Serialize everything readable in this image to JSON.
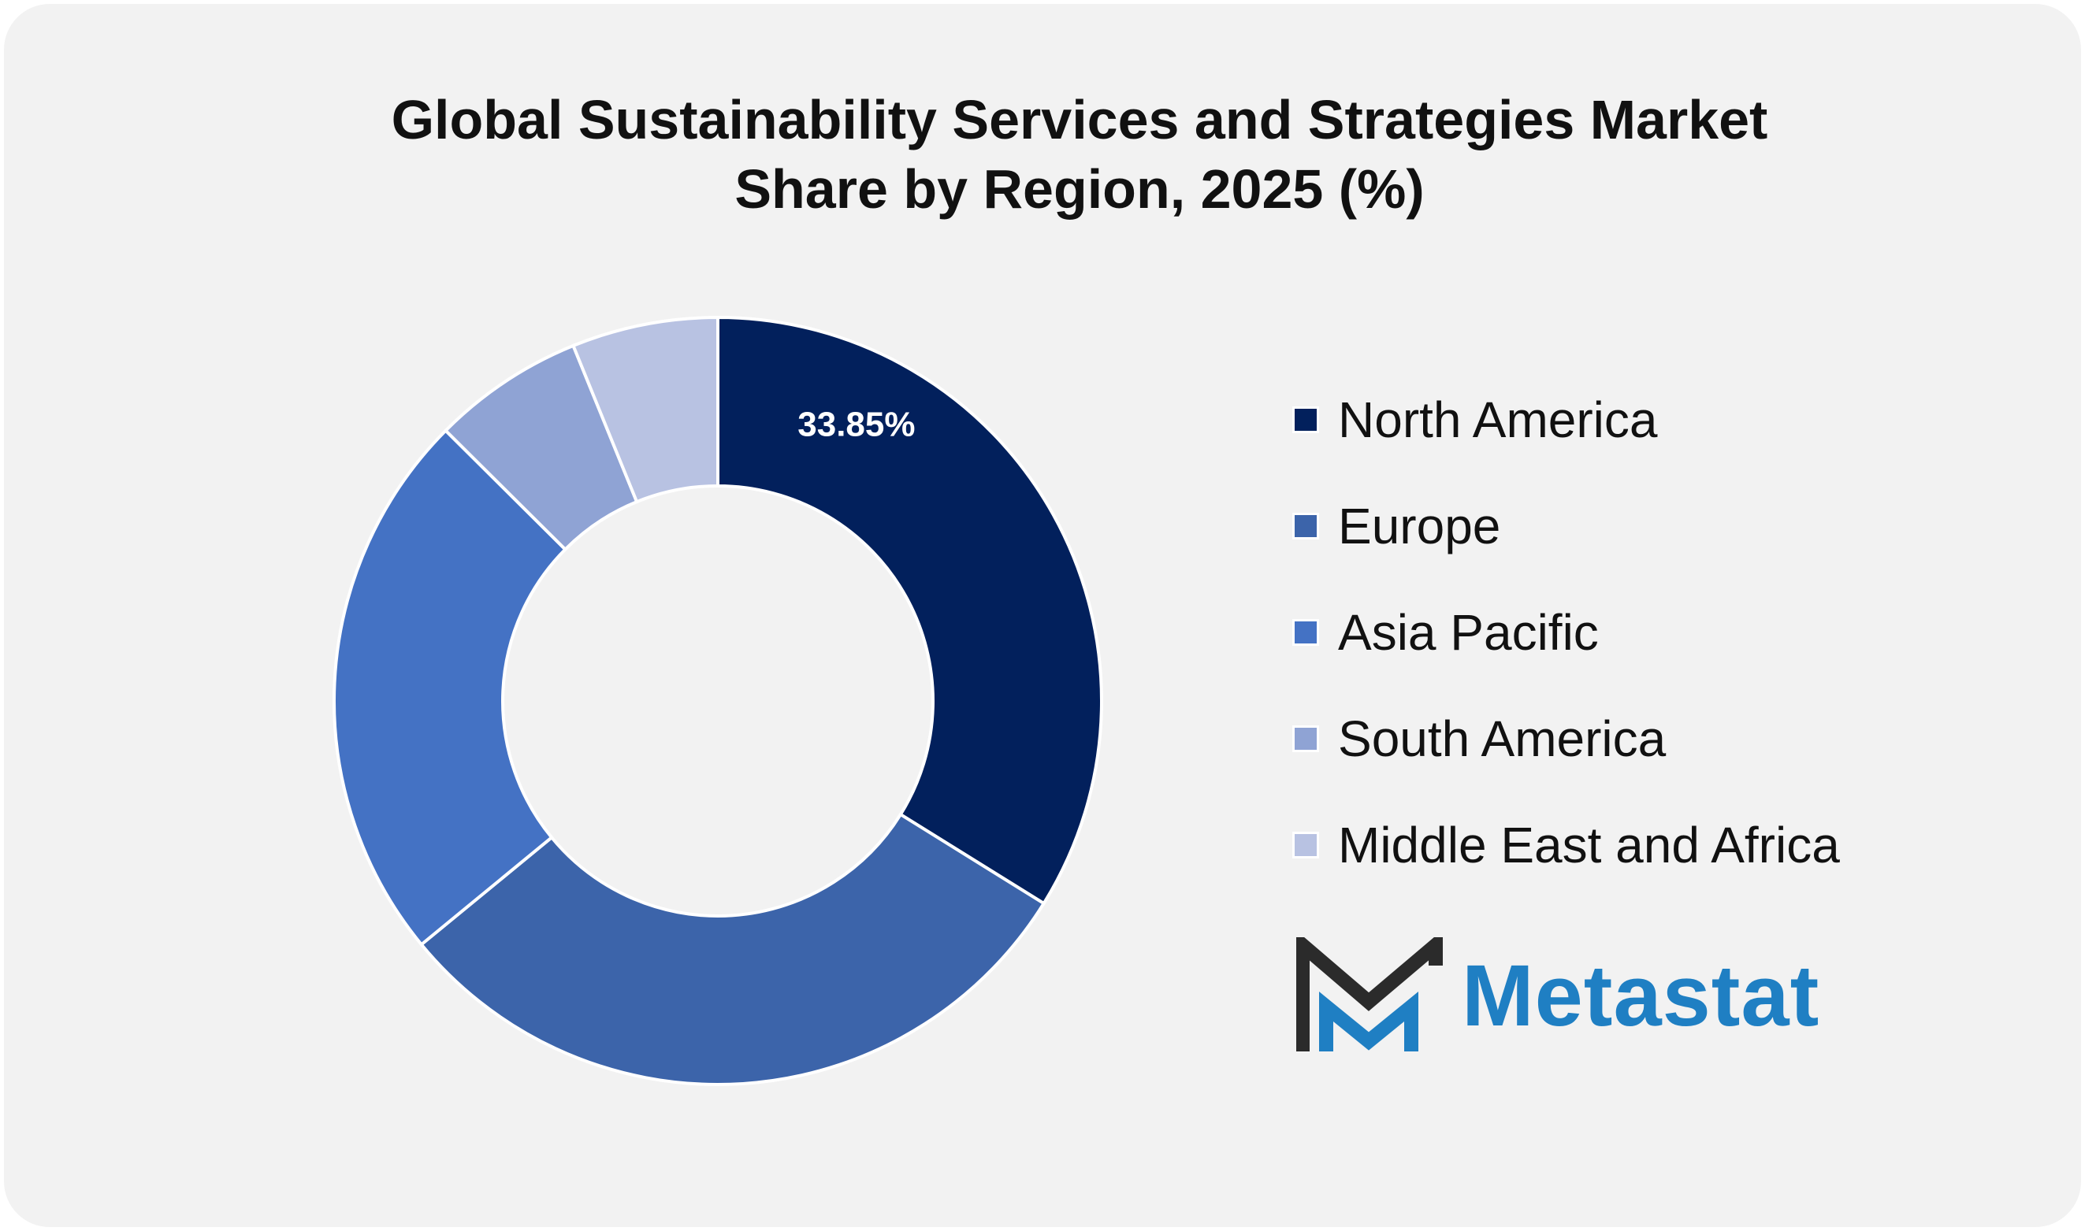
{
  "title_lines": [
    "Global Sustainability Services and Strategies Market",
    "Share by Region, 2025 (%)"
  ],
  "chart_data": {
    "type": "pie",
    "title": "Global Sustainability Services and Strategies Market Share by Region, 2025 (%)",
    "donut": true,
    "categories": [
      "North America",
      "Europe",
      "Asia Pacific",
      "South America",
      "Middle East and Africa"
    ],
    "values": [
      33.85,
      30.2,
      23.4,
      6.4,
      6.15
    ],
    "colors": [
      "#02205c",
      "#3c64aa",
      "#4472c4",
      "#8fa3d4",
      "#b8c2e2"
    ],
    "data_labels": [
      "33.85%",
      "",
      "",
      "",
      ""
    ],
    "legend_position": "right"
  },
  "legend": {
    "items": [
      "North America",
      "Europe",
      "Asia Pacific",
      "South America",
      "Middle East and Africa"
    ]
  },
  "logo": {
    "text": "Metastat"
  }
}
